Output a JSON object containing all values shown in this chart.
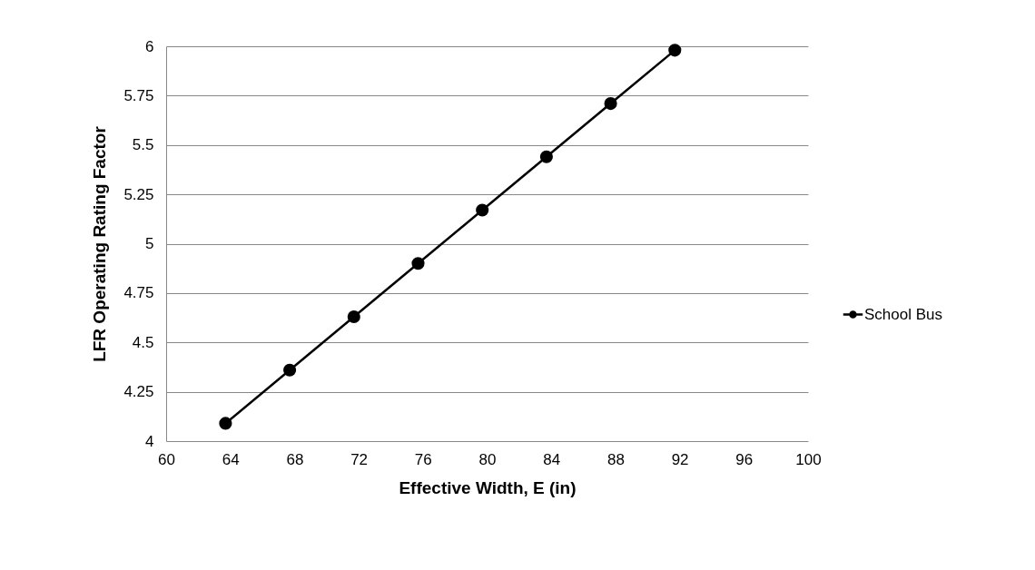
{
  "chart_data": {
    "type": "line",
    "xlabel": "Effective Width, E  (in)",
    "ylabel": "LFR Operating Rating Factor",
    "x": [
      63.7,
      67.7,
      71.7,
      75.7,
      79.7,
      83.7,
      87.7,
      91.7
    ],
    "series": [
      {
        "name": "School Bus",
        "color": "#000000",
        "values": [
          4.09,
          4.36,
          4.63,
          4.9,
          5.17,
          5.44,
          5.71,
          5.98
        ]
      }
    ],
    "xlim": [
      60,
      100
    ],
    "xticks": [
      60,
      64,
      68,
      72,
      76,
      80,
      84,
      88,
      92,
      96,
      100
    ],
    "ylim": [
      4,
      6
    ],
    "yticks": [
      4,
      4.25,
      4.5,
      4.75,
      5,
      5.25,
      5.5,
      5.75,
      6
    ],
    "grid": "y",
    "legend": "right",
    "marker": "circle",
    "line_style": "solid"
  }
}
